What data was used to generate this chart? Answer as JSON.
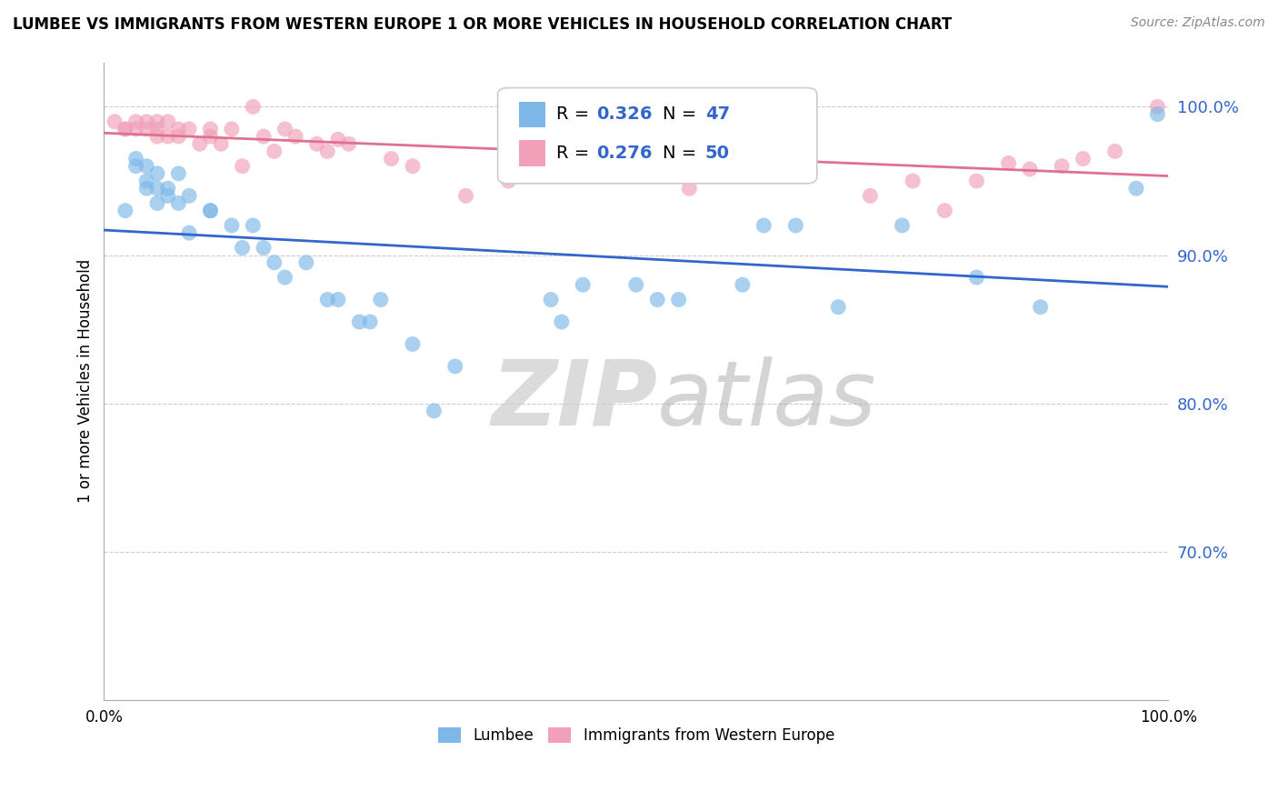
{
  "title": "LUMBEE VS IMMIGRANTS FROM WESTERN EUROPE 1 OR MORE VEHICLES IN HOUSEHOLD CORRELATION CHART",
  "source": "Source: ZipAtlas.com",
  "ylabel": "1 or more Vehicles in Household",
  "xlim": [
    0.0,
    1.0
  ],
  "ylim": [
    0.6,
    1.03
  ],
  "yticks": [
    0.7,
    0.8,
    0.9,
    1.0
  ],
  "ytick_labels": [
    "70.0%",
    "80.0%",
    "90.0%",
    "100.0%"
  ],
  "lumbee_R": 0.326,
  "lumbee_N": 47,
  "immigrants_R": 0.276,
  "immigrants_N": 50,
  "lumbee_color": "#7db8e8",
  "immigrants_color": "#f0a0b8",
  "lumbee_line_color": "#3366cc",
  "immigrants_line_color": "#e07090",
  "background_color": "#ffffff",
  "grid_color": "#cccccc",
  "watermark_zip": "ZIP",
  "watermark_atlas": "atlas",
  "lumbee_x": [
    0.02,
    0.03,
    0.03,
    0.04,
    0.04,
    0.04,
    0.05,
    0.05,
    0.05,
    0.06,
    0.06,
    0.07,
    0.07,
    0.08,
    0.08,
    0.1,
    0.1,
    0.12,
    0.13,
    0.14,
    0.15,
    0.16,
    0.17,
    0.19,
    0.21,
    0.22,
    0.24,
    0.25,
    0.26,
    0.29,
    0.31,
    0.33,
    0.42,
    0.43,
    0.45,
    0.5,
    0.52,
    0.54,
    0.6,
    0.62,
    0.65,
    0.69,
    0.75,
    0.82,
    0.88,
    0.97,
    0.99
  ],
  "lumbee_y": [
    0.93,
    0.965,
    0.96,
    0.96,
    0.95,
    0.945,
    0.935,
    0.955,
    0.945,
    0.94,
    0.945,
    0.935,
    0.955,
    0.915,
    0.94,
    0.93,
    0.93,
    0.92,
    0.905,
    0.92,
    0.905,
    0.895,
    0.885,
    0.895,
    0.87,
    0.87,
    0.855,
    0.855,
    0.87,
    0.84,
    0.795,
    0.825,
    0.87,
    0.855,
    0.88,
    0.88,
    0.87,
    0.87,
    0.88,
    0.92,
    0.92,
    0.865,
    0.92,
    0.885,
    0.865,
    0.945,
    0.995
  ],
  "immigrants_x": [
    0.01,
    0.02,
    0.02,
    0.03,
    0.03,
    0.04,
    0.04,
    0.05,
    0.05,
    0.05,
    0.06,
    0.06,
    0.07,
    0.07,
    0.08,
    0.09,
    0.1,
    0.1,
    0.11,
    0.12,
    0.13,
    0.14,
    0.15,
    0.16,
    0.17,
    0.18,
    0.2,
    0.21,
    0.22,
    0.23,
    0.27,
    0.29,
    0.34,
    0.38,
    0.41,
    0.55,
    0.59,
    0.6,
    0.64,
    0.66,
    0.72,
    0.76,
    0.79,
    0.82,
    0.85,
    0.87,
    0.9,
    0.92,
    0.95,
    0.99
  ],
  "immigrants_y": [
    0.99,
    0.985,
    0.985,
    0.99,
    0.985,
    0.99,
    0.985,
    0.99,
    0.985,
    0.98,
    0.99,
    0.98,
    0.985,
    0.98,
    0.985,
    0.975,
    0.985,
    0.98,
    0.975,
    0.985,
    0.96,
    1.0,
    0.98,
    0.97,
    0.985,
    0.98,
    0.975,
    0.97,
    0.978,
    0.975,
    0.965,
    0.96,
    0.94,
    0.95,
    0.96,
    0.945,
    0.968,
    0.975,
    0.968,
    0.97,
    0.94,
    0.95,
    0.93,
    0.95,
    0.962,
    0.958,
    0.96,
    0.965,
    0.97,
    1.0
  ]
}
